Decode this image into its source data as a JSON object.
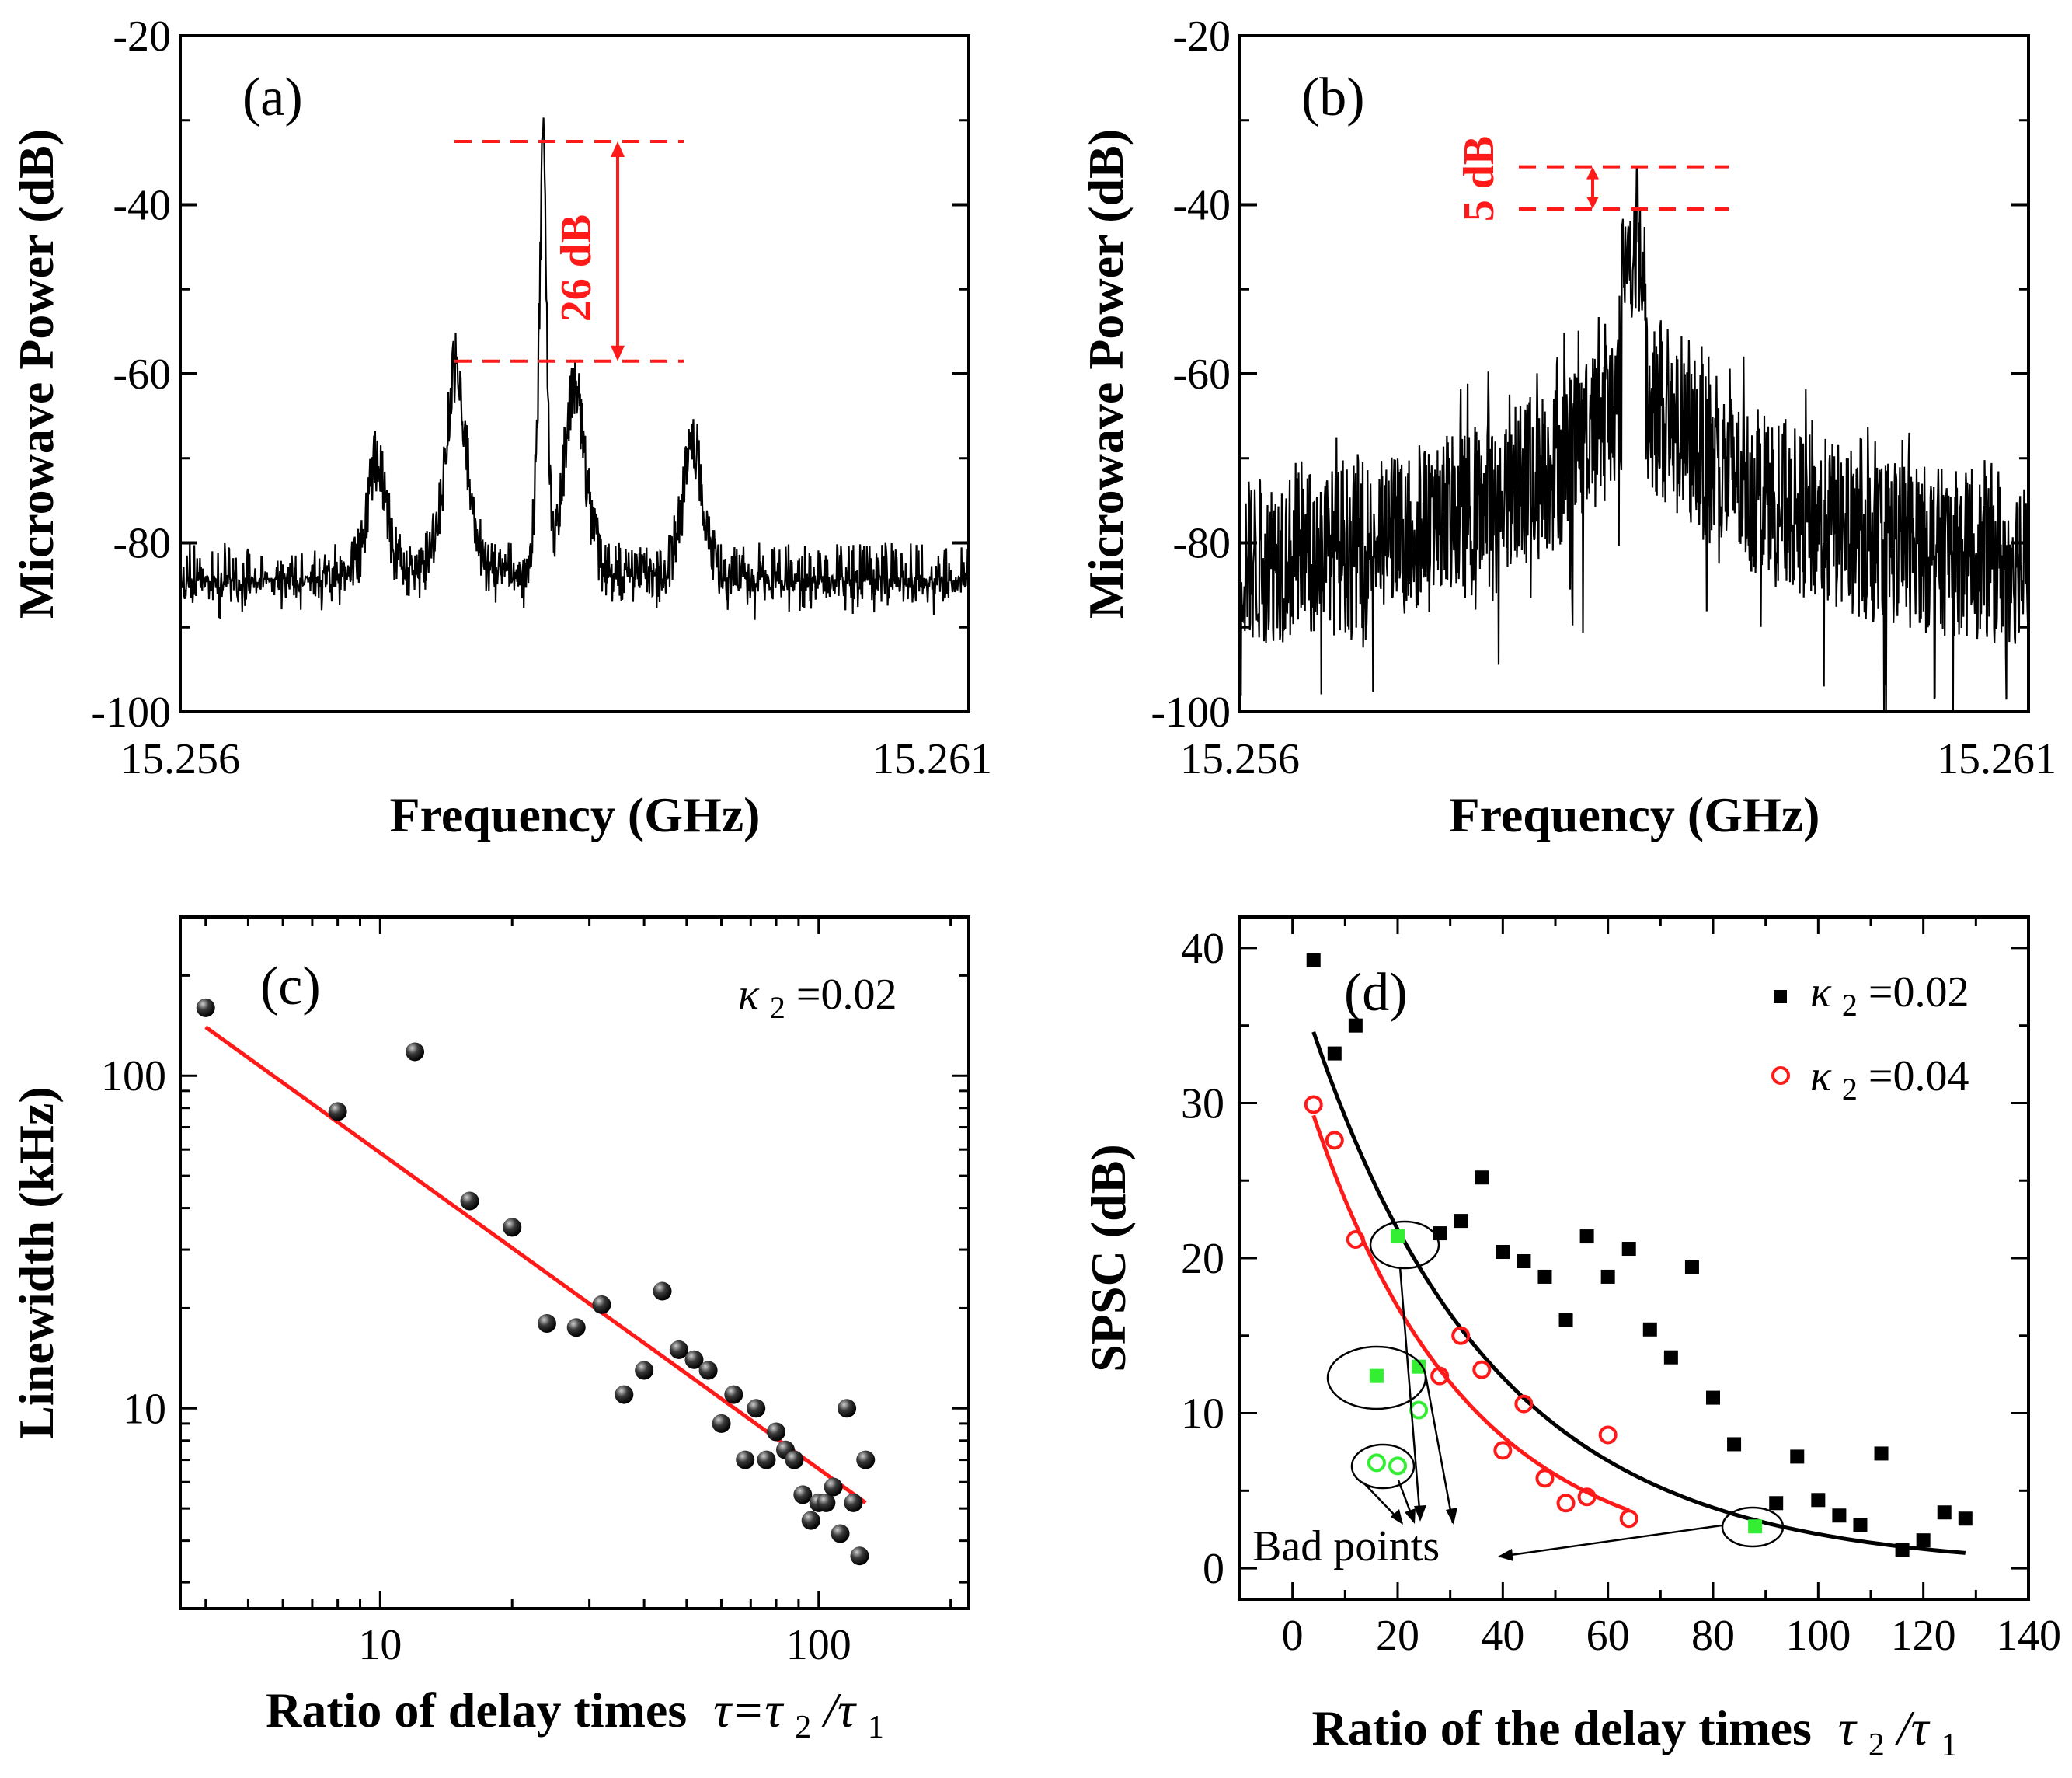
{
  "colors": {
    "black": "#000000",
    "red": "#ff1a1a",
    "green": "#33ee33"
  },
  "chart_data": [
    {
      "id": "a",
      "type": "line",
      "panel_label": "(a)",
      "xlabel": "Frequency (GHz)",
      "ylabel": "Microwave Power (dB)",
      "xlim": [
        15.256,
        15.261
      ],
      "ylim": [
        -100,
        -20
      ],
      "xtick_labels": [
        "15.256",
        "15.261"
      ],
      "yticks": [
        -100,
        -80,
        -60,
        -40,
        -20
      ],
      "ytick_labels": [
        "-100",
        "-80",
        "-60",
        "-40",
        "-20"
      ],
      "noise_floor_db": -88,
      "peaks": [
        {
          "f": 15.25725,
          "db": -70
        },
        {
          "f": 15.25775,
          "db": -59
        },
        {
          "f": 15.2583,
          "db": -32.5
        },
        {
          "f": 15.2585,
          "db": -61
        },
        {
          "f": 15.25925,
          "db": -68
        }
      ],
      "annotation": {
        "text": "26 dB",
        "upper_db": -32.5,
        "lower_db": -58.5
      }
    },
    {
      "id": "b",
      "type": "line",
      "panel_label": "(b)",
      "xlabel": "Frequency (GHz)",
      "ylabel": "Microwave Power (dB)",
      "xlim": [
        15.256,
        15.261
      ],
      "ylim": [
        -100,
        -20
      ],
      "xtick_labels": [
        "15.256",
        "15.261"
      ],
      "yticks": [
        -100,
        -80,
        -60,
        -40,
        -20
      ],
      "ytick_labels": [
        "-100",
        "-80",
        "-60",
        "-40",
        "-20"
      ],
      "center_f": 15.2585,
      "center_db": -35.5,
      "annotation": {
        "text": "5 dB",
        "upper_db": -35.5,
        "lower_db": -40.5
      }
    },
    {
      "id": "c",
      "type": "scatter",
      "panel_label": "(c)",
      "xlabel_prefix": "Ratio of delay times",
      "xlabel_math": "τ=τ",
      "xlabel_sub1": "2",
      "xlabel_slash": "/τ",
      "xlabel_sub2": "1",
      "ylabel": "Linewidth (kHz)",
      "xscale": "log",
      "yscale": "log",
      "xlim": [
        3.5,
        220
      ],
      "ylim": [
        2.5,
        300
      ],
      "xticks": [
        10,
        100
      ],
      "xtick_labels": [
        "10",
        "100"
      ],
      "yticks": [
        10,
        100
      ],
      "ytick_labels": [
        "10",
        "100"
      ],
      "legend_kappa": "κ",
      "legend_sub": "2",
      "legend_value": "=0.02",
      "points": [
        [
          4,
          160
        ],
        [
          8,
          78
        ],
        [
          12,
          118
        ],
        [
          16,
          42
        ],
        [
          20,
          35
        ],
        [
          24,
          18
        ],
        [
          28,
          17.5
        ],
        [
          32,
          20.5
        ],
        [
          36,
          11
        ],
        [
          40,
          13
        ],
        [
          44,
          22.5
        ],
        [
          48,
          15
        ],
        [
          52,
          14
        ],
        [
          56,
          13
        ],
        [
          60,
          9
        ],
        [
          64,
          11
        ],
        [
          68,
          7
        ],
        [
          72,
          10
        ],
        [
          76,
          7
        ],
        [
          80,
          8.5
        ],
        [
          84,
          7.5
        ],
        [
          88,
          7
        ],
        [
          92,
          5.5
        ],
        [
          96,
          4.6
        ],
        [
          100,
          5.2
        ],
        [
          104,
          5.2
        ],
        [
          108,
          5.8
        ],
        [
          112,
          4.2
        ],
        [
          116,
          10
        ],
        [
          120,
          5.2
        ],
        [
          124,
          3.6
        ],
        [
          128,
          7
        ]
      ],
      "fit": {
        "x1": 4,
        "y1": 140,
        "x2": 128,
        "y2": 5.2
      }
    },
    {
      "id": "d",
      "type": "scatter",
      "panel_label": "(d)",
      "xlabel_prefix": "Ratio of the delay times",
      "xlabel_math": "τ",
      "xlabel_sub1": "2",
      "xlabel_slash": "/τ",
      "xlabel_sub2": "1",
      "ylabel": "SPSC (dB)",
      "xlim": [
        -10,
        140
      ],
      "ylim": [
        -2,
        42
      ],
      "xticks": [
        0,
        20,
        40,
        60,
        80,
        100,
        120,
        140
      ],
      "xtick_labels": [
        "0",
        "20",
        "40",
        "60",
        "80",
        "100",
        "120",
        "140"
      ],
      "yticks": [
        0,
        10,
        20,
        30,
        40
      ],
      "ytick_labels": [
        "0",
        "10",
        "20",
        "30",
        "40"
      ],
      "annotation_text": "Bad points",
      "series": [
        {
          "name_kappa": "κ",
          "name_sub": "2",
          "name_value": "=0.02",
          "marker": "square",
          "color": "#000000",
          "points": [
            [
              4,
              39.2
            ],
            [
              8,
              33.2
            ],
            [
              12,
              35
            ],
            [
              28,
              21.6
            ],
            [
              32,
              22.4
            ],
            [
              36,
              25.2
            ],
            [
              40,
              20.4
            ],
            [
              44,
              19.8
            ],
            [
              48,
              18.8
            ],
            [
              52,
              16
            ],
            [
              56,
              21.4
            ],
            [
              60,
              18.8
            ],
            [
              64,
              20.6
            ],
            [
              68,
              15.4
            ],
            [
              72,
              13.6
            ],
            [
              76,
              19.4
            ],
            [
              80,
              11
            ],
            [
              84,
              8
            ],
            [
              92,
              4.2
            ],
            [
              96,
              7.2
            ],
            [
              100,
              4.4
            ],
            [
              104,
              3.4
            ],
            [
              108,
              2.8
            ],
            [
              112,
              7.4
            ],
            [
              116,
              1.2
            ],
            [
              120,
              1.8
            ],
            [
              124,
              3.6
            ],
            [
              128,
              3.2
            ]
          ],
          "bad_points": [
            [
              20,
              21.4
            ],
            [
              16,
              12.4
            ],
            [
              24,
              13
            ],
            [
              88,
              2.7
            ]
          ],
          "fit": {
            "A": 38.8,
            "k": 0.0287,
            "x_start": 4,
            "x_end": 128
          }
        },
        {
          "name_kappa": "κ",
          "name_sub": "2",
          "name_value": "=0.04",
          "marker": "circle",
          "color": "#ff1a1a",
          "points": [
            [
              4,
              29.9
            ],
            [
              8,
              27.6
            ],
            [
              12,
              21.2
            ],
            [
              28,
              12.4
            ],
            [
              32,
              15
            ],
            [
              36,
              12.8
            ],
            [
              40,
              7.6
            ],
            [
              44,
              10.6
            ],
            [
              48,
              5.8
            ],
            [
              52,
              4.2
            ],
            [
              56,
              4.6
            ],
            [
              60,
              8.6
            ],
            [
              64,
              3.2
            ]
          ],
          "bad_points": [
            [
              16,
              6.8
            ],
            [
              20,
              6.6
            ],
            [
              24,
              10.2
            ]
          ],
          "fit": {
            "A": 33.5,
            "k": 0.0343,
            "x_start": 4,
            "x_end": 64
          }
        }
      ]
    }
  ]
}
